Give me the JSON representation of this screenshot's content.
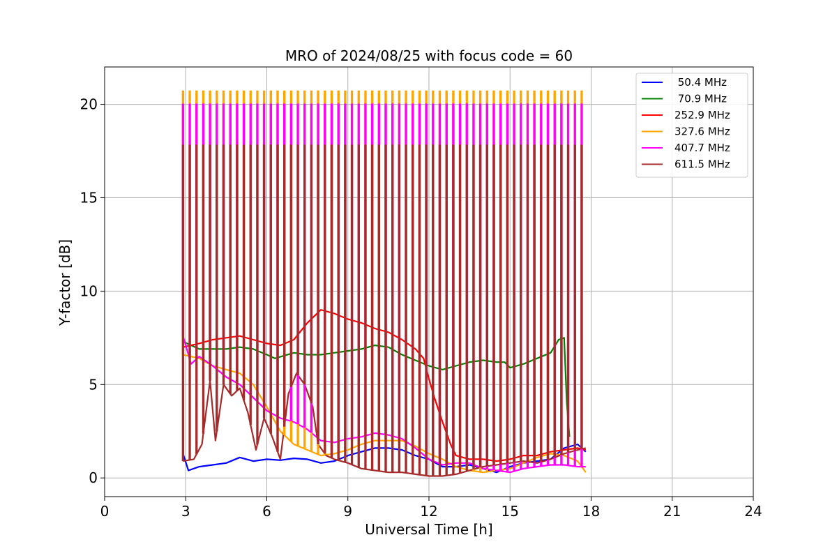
{
  "chart_data": {
    "type": "line",
    "title": "MRO of 2024/08/25 with focus code = 60",
    "xlabel": "Universal Time [h]",
    "ylabel": "Y-factor [dB]",
    "xlim": [
      0,
      24
    ],
    "ylim": [
      -1,
      22
    ],
    "x_ticks": [
      "0",
      "3",
      "6",
      "9",
      "12",
      "15",
      "18",
      "21",
      "24"
    ],
    "y_ticks": [
      "0",
      "5",
      "10",
      "15",
      "20"
    ],
    "grid": true,
    "legend_position": "top-right",
    "calibration_pulses": {
      "start_h": 2.9,
      "end_h": 17.8,
      "interval_h": 0.25,
      "width_h": 0.03,
      "peak_611_5": 17.8,
      "peak_407_7": 20.0,
      "peak_327_6": 20.7
    },
    "series": [
      {
        "name": " 50.4 MHz",
        "color": "#0000ff",
        "x": [
          2.9,
          3.1,
          3.5,
          4.0,
          4.5,
          5.0,
          5.5,
          6.0,
          6.5,
          7.0,
          7.5,
          8.0,
          8.5,
          9.0,
          9.5,
          10.0,
          10.5,
          11.0,
          11.5,
          12.0,
          12.5,
          13.0,
          13.5,
          14.0,
          14.5,
          15.0,
          15.5,
          16.0,
          16.5,
          17.0,
          17.5,
          17.8
        ],
        "y": [
          1.3,
          0.4,
          0.6,
          0.7,
          0.8,
          1.1,
          0.9,
          1.0,
          0.95,
          1.05,
          1.0,
          0.8,
          0.9,
          1.2,
          1.4,
          1.6,
          1.6,
          1.5,
          1.2,
          1.0,
          0.6,
          0.6,
          0.7,
          0.5,
          0.3,
          0.6,
          0.8,
          0.9,
          1.0,
          1.6,
          1.8,
          1.4
        ]
      },
      {
        "name": " 70.9 MHz",
        "color": "#008000",
        "x": [
          2.9,
          3.5,
          4.0,
          4.5,
          5.0,
          5.5,
          6.0,
          6.3,
          7.0,
          7.5,
          8.0,
          8.5,
          9.0,
          9.5,
          10.0,
          10.5,
          11.0,
          11.5,
          12.0,
          12.5,
          13.0,
          13.5,
          14.0,
          14.5,
          14.8,
          15.0,
          15.5,
          16.0,
          16.5,
          16.8,
          17.0,
          17.1,
          17.2
        ],
        "y": [
          7.3,
          6.9,
          6.9,
          6.9,
          7.0,
          6.9,
          6.6,
          6.4,
          6.7,
          6.6,
          6.6,
          6.7,
          6.8,
          6.9,
          7.1,
          7.0,
          6.6,
          6.3,
          6.0,
          5.8,
          6.0,
          6.2,
          6.3,
          6.2,
          6.2,
          5.9,
          6.1,
          6.4,
          6.7,
          7.4,
          7.5,
          4.0,
          2.2
        ]
      },
      {
        "name": "252.9 MHz",
        "color": "#ff0000",
        "x": [
          2.9,
          3.5,
          4.0,
          4.5,
          5.0,
          5.5,
          6.0,
          6.5,
          7.0,
          7.5,
          8.0,
          8.5,
          9.0,
          9.5,
          10.0,
          10.5,
          11.0,
          11.5,
          11.8,
          12.0,
          12.2,
          12.5,
          12.8,
          13.0,
          13.5,
          14.0,
          14.5,
          15.0,
          15.5,
          16.0,
          16.5,
          17.0,
          17.5,
          17.8
        ],
        "y": [
          7.0,
          7.2,
          7.4,
          7.5,
          7.6,
          7.4,
          7.2,
          7.1,
          7.4,
          8.3,
          9.0,
          8.8,
          8.5,
          8.3,
          8.0,
          7.8,
          7.4,
          6.9,
          6.4,
          5.3,
          4.3,
          3.0,
          1.8,
          1.2,
          1.0,
          1.0,
          0.9,
          1.0,
          1.2,
          1.2,
          1.4,
          1.5,
          1.6,
          1.5
        ]
      },
      {
        "name": "327.6 MHz",
        "color": "#ffa500",
        "x": [
          2.9,
          3.5,
          4.0,
          4.5,
          5.0,
          5.5,
          6.0,
          6.5,
          7.0,
          7.5,
          8.0,
          8.5,
          9.0,
          9.5,
          10.0,
          10.5,
          11.0,
          11.5,
          12.0,
          12.5,
          13.0,
          13.5,
          14.0,
          14.5,
          15.0,
          15.5,
          16.0,
          16.5,
          17.0,
          17.5,
          17.8
        ],
        "y": [
          6.6,
          6.4,
          6.0,
          5.8,
          5.6,
          5.0,
          3.8,
          2.5,
          1.8,
          1.5,
          1.2,
          1.3,
          1.5,
          1.8,
          2.0,
          2.0,
          2.0,
          1.7,
          1.3,
          1.0,
          0.6,
          0.4,
          0.3,
          0.4,
          0.5,
          0.8,
          1.1,
          1.3,
          1.2,
          0.9,
          0.3
        ]
      },
      {
        "name": "407.7 MHz",
        "color": "#ff00ff",
        "x": [
          2.9,
          3.2,
          3.5,
          4.0,
          4.5,
          5.0,
          5.5,
          6.0,
          6.5,
          7.0,
          7.5,
          8.0,
          8.5,
          9.0,
          9.5,
          10.0,
          10.5,
          11.0,
          11.5,
          12.0,
          12.5,
          13.0,
          13.5,
          14.0,
          14.5,
          15.0,
          15.5,
          16.0,
          16.5,
          17.0,
          17.5,
          17.8
        ],
        "y": [
          7.6,
          6.1,
          6.5,
          6.0,
          5.4,
          5.0,
          4.3,
          3.6,
          3.2,
          3.0,
          2.6,
          2.0,
          1.9,
          2.1,
          2.2,
          2.4,
          2.3,
          2.1,
          1.6,
          1.0,
          0.7,
          0.8,
          0.8,
          0.5,
          0.4,
          0.3,
          0.5,
          0.6,
          0.7,
          0.7,
          0.6,
          0.6
        ]
      },
      {
        "name": "611.5 MHz",
        "color": "#a52a2a",
        "x": [
          2.9,
          3.3,
          3.6,
          3.9,
          4.1,
          4.4,
          4.7,
          5.0,
          5.3,
          5.6,
          5.9,
          6.2,
          6.5,
          6.8,
          7.1,
          7.4,
          7.7,
          7.9,
          8.2,
          8.5,
          9.0,
          9.5,
          10.0,
          10.5,
          11.0,
          11.5,
          12.0,
          12.5,
          13.0,
          13.5,
          14.0,
          14.5,
          15.0,
          15.5,
          16.0,
          16.5,
          17.0,
          17.5,
          17.8
        ],
        "y": [
          0.9,
          1.0,
          1.8,
          5.2,
          2.0,
          5.0,
          4.4,
          4.8,
          3.5,
          1.5,
          3.2,
          2.2,
          1.0,
          4.5,
          5.6,
          5.0,
          3.8,
          1.8,
          1.2,
          1.0,
          0.8,
          0.5,
          0.4,
          0.3,
          0.3,
          0.2,
          0.1,
          0.1,
          0.2,
          0.4,
          0.6,
          0.7,
          0.8,
          0.9,
          0.8,
          1.0,
          1.3,
          1.5,
          1.6
        ]
      }
    ]
  }
}
